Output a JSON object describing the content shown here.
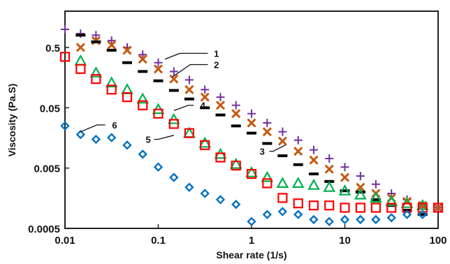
{
  "chart_data": {
    "type": "scatter",
    "xlabel": "Shear rate (1/s)",
    "ylabel": "Viscosity (Pa.S)",
    "xscale": "log",
    "yscale": "log",
    "xlim": [
      0.01,
      100
    ],
    "ylim": [
      0.0005,
      2
    ],
    "x_ticks": [
      {
        "value": 0.01,
        "label": "0.01"
      },
      {
        "value": 0.1,
        "label": "0.1"
      },
      {
        "value": 1,
        "label": "1"
      },
      {
        "value": 10,
        "label": "10"
      },
      {
        "value": 100,
        "label": "100"
      }
    ],
    "y_ticks": [
      {
        "value": 0.0005,
        "label": "0.0005"
      },
      {
        "value": 0.005,
        "label": "0.005"
      },
      {
        "value": 0.05,
        "label": "0.05"
      },
      {
        "value": 0.5,
        "label": "0.5"
      }
    ],
    "grid": false,
    "legend": "none",
    "series": [
      {
        "marker": "plus",
        "color": "#7030A0",
        "x": [
          0.01,
          0.0147,
          0.0215,
          0.0316,
          0.0464,
          0.0681,
          0.1,
          0.147,
          0.215,
          0.316,
          0.464,
          0.681,
          1.0,
          1.47,
          2.15,
          3.16,
          4.64,
          6.81,
          10,
          14.7,
          21.5,
          31.6,
          46.4,
          68.1,
          100
        ],
        "y": [
          1.0,
          0.85,
          0.8,
          0.65,
          0.5,
          0.38,
          0.28,
          0.2,
          0.145,
          0.1,
          0.075,
          0.055,
          0.04,
          0.028,
          0.02,
          0.0145,
          0.01,
          0.0072,
          0.0052,
          0.0037,
          0.0027,
          0.0019,
          0.0015,
          0.0012,
          0.0011
        ]
      },
      {
        "marker": "x",
        "color": "#C55A11",
        "x": [
          0.0147,
          0.0215,
          0.0316,
          0.0464,
          0.0681,
          0.1,
          0.147,
          0.215,
          0.316,
          0.464,
          0.681,
          1.0,
          1.47,
          2.15,
          3.16,
          4.64,
          6.81,
          10,
          14.7,
          21.5,
          31.6,
          46.4,
          68.1,
          100
        ],
        "y": [
          0.5,
          0.65,
          0.55,
          0.45,
          0.32,
          0.22,
          0.15,
          0.1,
          0.075,
          0.055,
          0.04,
          0.028,
          0.02,
          0.014,
          0.0095,
          0.0068,
          0.0048,
          0.0035,
          0.0024,
          0.0019,
          0.0016,
          0.0014,
          0.0012,
          0.0011
        ]
      },
      {
        "marker": "dash",
        "color": "#000000",
        "x": [
          0.0147,
          0.0215,
          0.0316,
          0.0464,
          0.0681,
          0.1,
          0.147,
          0.215,
          0.316,
          0.464,
          0.681,
          1.0,
          1.47,
          2.15,
          3.16,
          4.64,
          6.81,
          10,
          14.7,
          21.5,
          31.6,
          46.4,
          68.1
        ],
        "y": [
          0.8,
          0.62,
          0.45,
          0.28,
          0.2,
          0.14,
          0.097,
          0.07,
          0.05,
          0.038,
          0.025,
          0.019,
          0.0128,
          0.008,
          0.0057,
          0.004,
          0.003,
          0.0021,
          0.002,
          0.0015,
          0.0012,
          0.001,
          0.00085
        ]
      },
      {
        "marker": "triangle",
        "color": "#00B050",
        "x": [
          0.0147,
          0.0215,
          0.0316,
          0.0464,
          0.0681,
          0.1,
          0.147,
          0.215,
          0.316,
          0.464,
          0.681,
          1.0,
          1.47,
          2.15,
          3.16,
          4.64,
          6.81,
          10,
          14.7,
          21.5,
          31.6,
          46.4,
          68.1
        ],
        "y": [
          0.3,
          0.19,
          0.13,
          0.1,
          0.07,
          0.047,
          0.032,
          0.019,
          0.013,
          0.0085,
          0.0058,
          0.0042,
          0.0035,
          0.0028,
          0.0028,
          0.0026,
          0.0024,
          0.0021,
          0.0018,
          0.0016,
          0.0014,
          0.0013,
          0.0012
        ]
      },
      {
        "marker": "square",
        "color": "#FF0000",
        "x": [
          0.01,
          0.0147,
          0.0215,
          0.0316,
          0.0464,
          0.0681,
          0.1,
          0.147,
          0.215,
          0.316,
          0.464,
          0.681,
          1.0,
          1.47,
          2.15,
          3.16,
          4.64,
          6.81,
          10,
          14.7,
          21.5,
          31.6,
          46.4,
          68.1,
          100
        ],
        "y": [
          0.35,
          0.22,
          0.15,
          0.1,
          0.075,
          0.055,
          0.04,
          0.027,
          0.019,
          0.012,
          0.0075,
          0.0055,
          0.004,
          0.0028,
          0.0016,
          0.0013,
          0.0012,
          0.0012,
          0.0011,
          0.0011,
          0.0011,
          0.0011,
          0.0011,
          0.0011,
          0.0011
        ]
      },
      {
        "marker": "diamond",
        "color": "#0070C0",
        "x": [
          0.01,
          0.0147,
          0.0215,
          0.0316,
          0.0464,
          0.0681,
          0.1,
          0.147,
          0.215,
          0.316,
          0.464,
          0.681,
          1.0,
          1.47,
          2.15,
          3.16,
          4.64,
          6.81,
          10,
          14.7,
          21.5,
          31.6,
          46.4,
          68.1
        ],
        "y": [
          0.025,
          0.018,
          0.015,
          0.016,
          0.012,
          0.0085,
          0.0052,
          0.0035,
          0.0024,
          0.0019,
          0.0015,
          0.00125,
          0.00065,
          0.00085,
          0.00095,
          0.00085,
          0.0007,
          0.00065,
          0.0007,
          0.0007,
          0.0007,
          0.00075,
          0.00085,
          0.00085
        ]
      }
    ],
    "annotations": [
      {
        "text": "1",
        "line": [
          [
            0.118,
            0.32
          ],
          [
            0.17,
            0.4
          ],
          [
            0.34,
            0.4
          ]
        ],
        "text_at": [
          0.42,
          0.4
        ]
      },
      {
        "text": "2",
        "line": [
          [
            0.14,
            0.16
          ],
          [
            0.22,
            0.26
          ],
          [
            0.34,
            0.26
          ]
        ],
        "text_at": [
          0.42,
          0.26
        ]
      },
      {
        "text": "3",
        "line": [
          [
            2.3,
            0.012
          ],
          [
            1.7,
            0.0095
          ],
          [
            1.55,
            0.0095
          ]
        ],
        "text_at": [
          1.3,
          0.0095
        ]
      },
      {
        "text": "4",
        "line": [
          [
            0.147,
            0.045
          ],
          [
            0.21,
            0.055
          ],
          [
            0.24,
            0.055
          ]
        ],
        "text_at": [
          0.3,
          0.055
        ]
      },
      {
        "text": "5",
        "line": [
          [
            0.147,
            0.0175
          ],
          [
            0.1,
            0.015
          ],
          [
            0.09,
            0.015
          ]
        ],
        "text_at": [
          0.078,
          0.015
        ]
      },
      {
        "text": "6",
        "line": [
          [
            0.0147,
            0.02
          ],
          [
            0.022,
            0.026
          ],
          [
            0.027,
            0.026
          ]
        ],
        "text_at": [
          0.034,
          0.026
        ]
      }
    ]
  }
}
